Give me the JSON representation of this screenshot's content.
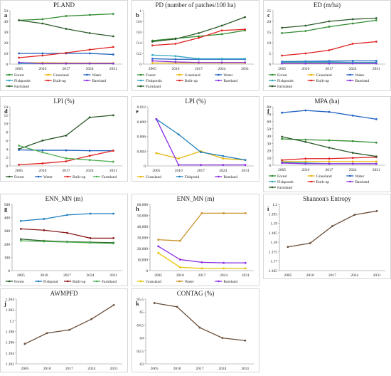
{
  "chart_data": [
    {
      "id": "a",
      "type": "line",
      "label": "a",
      "title": "PLAND",
      "categories": [
        "2005",
        "2010",
        "2017",
        "2024",
        "2031"
      ],
      "ylim": [
        0,
        50
      ],
      "yticks": [
        0,
        10,
        20,
        30,
        40,
        50
      ],
      "grid": false,
      "legend": "bottom",
      "series": [
        {
          "name": "Forest",
          "color": "#2e8b2e",
          "values": [
            41,
            42,
            45,
            46,
            47
          ]
        },
        {
          "name": "Grassland",
          "color": "#e8b400",
          "values": [
            1.2,
            1.2,
            1.1,
            1.0,
            1.0
          ]
        },
        {
          "name": "Water",
          "color": "#1f5fbf",
          "values": [
            10,
            10,
            10,
            10,
            9
          ]
        },
        {
          "name": "Fishponds",
          "color": "#2aa6c4",
          "values": [
            0.5,
            0.5,
            0.5,
            0.5,
            0.5
          ]
        },
        {
          "name": "Built-up",
          "color": "#e02020",
          "values": [
            6,
            8,
            10.5,
            13.5,
            16
          ]
        },
        {
          "name": "Bareland",
          "color": "#8a2be2",
          "values": [
            1.5,
            0.5,
            0.5,
            0.5,
            0.5
          ]
        },
        {
          "name": "Farmland",
          "color": "#2b5a2b",
          "values": [
            41,
            38,
            33,
            29,
            26
          ]
        }
      ]
    },
    {
      "id": "b",
      "type": "line",
      "label": "b",
      "title": "PD (number of patches/100 ha)",
      "categories": [
        "2005",
        "2010",
        "2017",
        "2024",
        "2031"
      ],
      "ylim": [
        0,
        1
      ],
      "yticks": [
        0,
        0.2,
        0.4,
        0.6,
        0.8,
        1
      ],
      "grid": false,
      "legend": "bottom",
      "series": [
        {
          "name": "Forest",
          "color": "#2e8b2e",
          "values": [
            0.44,
            0.48,
            0.52,
            0.56,
            0.63
          ]
        },
        {
          "name": "Grassland",
          "color": "#e8b400",
          "values": [
            0.02,
            0.02,
            0.02,
            0.02,
            0.02
          ]
        },
        {
          "name": "Water",
          "color": "#1f5fbf",
          "values": [
            0.1,
            0.09,
            0.09,
            0.09,
            0.09
          ]
        },
        {
          "name": "Fishponds",
          "color": "#2aa6c4",
          "values": [
            0.17,
            0.15,
            0.1,
            0.1,
            0.1
          ]
        },
        {
          "name": "Built-up",
          "color": "#e02020",
          "values": [
            0.35,
            0.38,
            0.49,
            0.63,
            0.65
          ]
        },
        {
          "name": "Bareland",
          "color": "#8a2be2",
          "values": [
            0.06,
            0.04,
            0.03,
            0.03,
            0.03
          ]
        },
        {
          "name": "Farmland",
          "color": "#2b5a2b",
          "values": [
            0.42,
            0.47,
            0.58,
            0.72,
            0.88
          ]
        }
      ]
    },
    {
      "id": "c",
      "type": "line",
      "label": "c",
      "title": "ED (m/ha)",
      "categories": [
        "2005",
        "2010",
        "2017",
        "2024",
        "2031"
      ],
      "ylim": [
        0,
        25
      ],
      "yticks": [
        0,
        5,
        10,
        15,
        20,
        25
      ],
      "grid": false,
      "legend": "bottom",
      "series": [
        {
          "name": "Forest",
          "color": "#2e8b2e",
          "values": [
            14.5,
            15.5,
            17.5,
            19,
            20.5
          ]
        },
        {
          "name": "Grassland",
          "color": "#e8b400",
          "values": [
            0.4,
            0.4,
            0.4,
            0.4,
            0.4
          ]
        },
        {
          "name": "Water",
          "color": "#1f5fbf",
          "values": [
            1.2,
            1.3,
            1.4,
            1.5,
            1.5
          ]
        },
        {
          "name": "Fishponds",
          "color": "#2aa6c4",
          "values": [
            0.9,
            0.9,
            0.9,
            0.8,
            0.8
          ]
        },
        {
          "name": "Built-up",
          "color": "#e02020",
          "values": [
            4,
            5,
            6.5,
            9.5,
            10.5
          ]
        },
        {
          "name": "Bareland",
          "color": "#8a2be2",
          "values": [
            0.3,
            0.3,
            0.3,
            0.3,
            0.3
          ]
        },
        {
          "name": "Farmland",
          "color": "#2b5a2b",
          "values": [
            17,
            18,
            20,
            21,
            21.5
          ]
        }
      ]
    },
    {
      "id": "d",
      "type": "line",
      "label": "d",
      "title": "LPI (%)",
      "categories": [
        "2005",
        "2010",
        "2017",
        "2024",
        "2031"
      ],
      "ylim": [
        0,
        14
      ],
      "yticks": [
        0,
        2,
        4,
        6,
        8,
        10,
        12,
        14
      ],
      "grid": false,
      "legend": "bottom",
      "series": [
        {
          "name": "Forest",
          "color": "#2b5a2b",
          "values": [
            4,
            6,
            7.2,
            11.5,
            12
          ]
        },
        {
          "name": "Water",
          "color": "#1f5fbf",
          "values": [
            3.8,
            3.7,
            3.7,
            3.6,
            3.6
          ]
        },
        {
          "name": "Built-up",
          "color": "#e02020",
          "values": [
            0.3,
            0.6,
            1.1,
            2.4,
            3.6
          ]
        },
        {
          "name": "Farmland",
          "color": "#4caf50",
          "values": [
            4.8,
            3.2,
            1.8,
            1.4,
            1
          ]
        }
      ]
    },
    {
      "id": "e",
      "type": "line",
      "label": "e",
      "title": "LPI (%)",
      "categories": [
        "2005",
        "2010",
        "2017",
        "2024",
        "2031"
      ],
      "ylim": [
        0,
        0.012
      ],
      "yticks": [
        0,
        0.003,
        0.006,
        0.009,
        0.012
      ],
      "grid": false,
      "legend": "bottom",
      "series": [
        {
          "name": "Grassland",
          "color": "#e8b400",
          "values": [
            0.0026,
            0.0015,
            0.003,
            0.0015,
            0.0012
          ]
        },
        {
          "name": "Fishpond",
          "color": "#1f7fbf",
          "values": [
            0.0095,
            0.0064,
            0.0028,
            0.002,
            0.0012
          ]
        },
        {
          "name": "Bareland",
          "color": "#8a2be2",
          "values": [
            0.0095,
            0.0002,
            0.0002,
            0.0002,
            0.0002
          ]
        }
      ]
    },
    {
      "id": "f",
      "type": "line",
      "label": "f",
      "title": "MPA (ha)",
      "categories": [
        "2005",
        "2010",
        "2017",
        "2024",
        "2031"
      ],
      "ylim": [
        0,
        80
      ],
      "yticks": [
        0,
        10,
        20,
        30,
        40,
        50,
        60,
        70,
        80
      ],
      "grid": false,
      "legend": "bottom",
      "series": [
        {
          "name": "Forest",
          "color": "#2e8b2e",
          "values": [
            36,
            35,
            34,
            33,
            31
          ]
        },
        {
          "name": "Grassland",
          "color": "#e8b400",
          "values": [
            5,
            5,
            5,
            5,
            5
          ]
        },
        {
          "name": "Water",
          "color": "#1f5fbf",
          "values": [
            72,
            75,
            73,
            68,
            63
          ]
        },
        {
          "name": "Fishponds",
          "color": "#2aa6c4",
          "values": [
            4,
            3,
            2,
            2,
            2
          ]
        },
        {
          "name": "Built-up",
          "color": "#e02020",
          "values": [
            7,
            9,
            9,
            10,
            11
          ]
        },
        {
          "name": "Bareland",
          "color": "#8a2be2",
          "values": [
            3,
            2,
            2,
            2,
            2
          ]
        },
        {
          "name": "Farmland",
          "color": "#2b5a2b",
          "values": [
            39,
            32,
            24,
            17,
            12
          ]
        }
      ]
    },
    {
      "id": "g",
      "type": "line",
      "label": "g",
      "title": "ENN_MN (m)",
      "categories": [
        "2005",
        "2010",
        "2017",
        "2024",
        "2031"
      ],
      "ylim": [
        0,
        500
      ],
      "yticks": [
        0,
        100,
        200,
        300,
        400,
        500
      ],
      "grid": false,
      "legend": "bottom",
      "series": [
        {
          "name": "Forest",
          "color": "#2b5a2b",
          "values": [
            238,
            225,
            218,
            214,
            210
          ]
        },
        {
          "name": "Fishpond",
          "color": "#1f7fbf",
          "values": [
            375,
            390,
            420,
            430,
            430
          ]
        },
        {
          "name": "Built-up",
          "color": "#8b1a1a",
          "values": [
            315,
            305,
            285,
            245,
            245
          ]
        },
        {
          "name": "Farmland",
          "color": "#4caf50",
          "values": [
            225,
            220,
            215,
            210,
            205
          ]
        }
      ]
    },
    {
      "id": "h",
      "type": "line",
      "label": "h",
      "title": "ENN_MN (m)",
      "categories": [
        "2005",
        "2010",
        "2017",
        "2024",
        "2031"
      ],
      "ylim": [
        0,
        60000
      ],
      "yticks": [
        0,
        10000,
        20000,
        30000,
        40000,
        50000,
        60000
      ],
      "grid": false,
      "legend": "bottom",
      "series": [
        {
          "name": "Grassland",
          "color": "#e8c400",
          "values": [
            16000,
            3000,
            2000,
            2000,
            2000
          ]
        },
        {
          "name": "Water",
          "color": "#c8922a",
          "values": [
            28000,
            27000,
            52000,
            52000,
            52000
          ]
        },
        {
          "name": "Bareland",
          "color": "#8a2be2",
          "values": [
            22000,
            10000,
            7500,
            7000,
            7000
          ]
        }
      ]
    },
    {
      "id": "i",
      "type": "line",
      "label": "i",
      "title": "Shannon's Entropy",
      "categories": [
        "2005",
        "2010",
        "2017",
        "2024",
        "2031"
      ],
      "ylim": [
        1.165,
        1.2
      ],
      "yticks": [
        1.165,
        1.17,
        1.175,
        1.18,
        1.185,
        1.19,
        1.195,
        1.2
      ],
      "grid": false,
      "legend": "none",
      "series": [
        {
          "name": "",
          "color": "#6b4f3a",
          "values": [
            1.1775,
            1.1795,
            1.1885,
            1.1945,
            1.1965
          ]
        }
      ]
    },
    {
      "id": "j",
      "type": "line",
      "label": "j",
      "title": "AWMPFD",
      "categories": [
        "2005",
        "2010",
        "2017",
        "2024",
        "2031"
      ],
      "ylim": [
        1.192,
        1.204
      ],
      "yticks": [
        1.192,
        1.194,
        1.196,
        1.198,
        1.2,
        1.202,
        1.204
      ],
      "grid": false,
      "legend": "none",
      "series": [
        {
          "name": "",
          "color": "#6b4f3a",
          "values": [
            1.1957,
            1.1977,
            1.1983,
            1.2003,
            1.2029
          ]
        }
      ]
    },
    {
      "id": "k",
      "type": "line",
      "label": "k",
      "title": "CONTAG (%)",
      "categories": [
        "2005",
        "2010",
        "2017",
        "2024",
        "2031"
      ],
      "ylim": [
        63,
        65.5
      ],
      "yticks": [
        63,
        63.5,
        64,
        64.5,
        65,
        65.5
      ],
      "grid": false,
      "legend": "none",
      "series": [
        {
          "name": "",
          "color": "#6b4f3a",
          "values": [
            65.35,
            65.2,
            64.4,
            64,
            63.9
          ]
        }
      ]
    }
  ]
}
